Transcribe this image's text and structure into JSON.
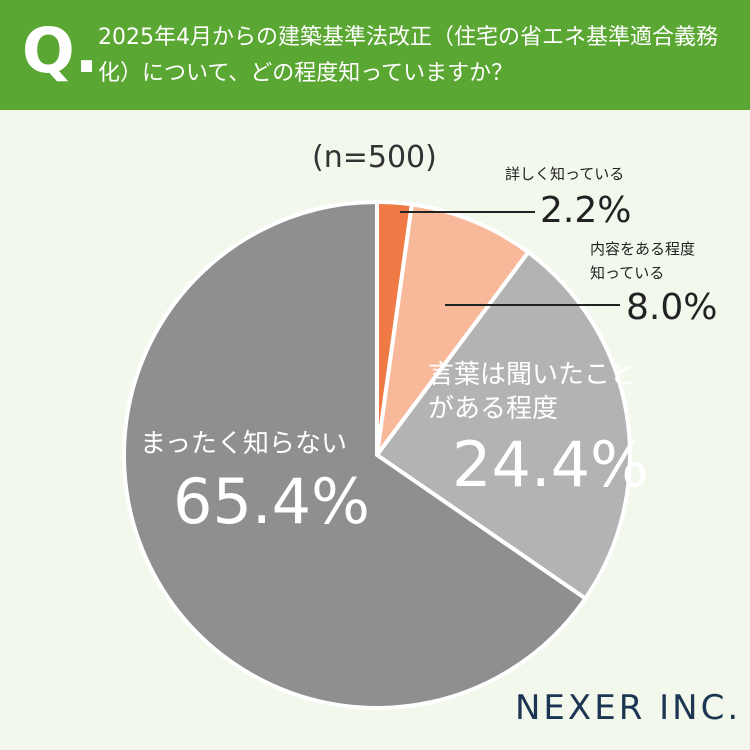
{
  "header": {
    "marker": "Q."
  },
  "chart_data": {
    "type": "pie",
    "title": "2025年4月からの建築基準法改正（住宅の省エネ基準適合義務化）について、どの程度知っていますか？",
    "subtitle": "(n=500)",
    "categories": [
      "詳しく知っている",
      "内容をある程度知っている",
      "言葉は聞いたことがある程度",
      "まったく知らない"
    ],
    "values": [
      2.2,
      8.0,
      24.4,
      65.4
    ],
    "value_labels": [
      "2.2%",
      "8.0%",
      "24.4%",
      "65.4%"
    ],
    "colors": [
      "#f07a45",
      "#f8b99b",
      "#b3b3b3",
      "#8f8f8f"
    ]
  },
  "brand": "NEXER INC."
}
